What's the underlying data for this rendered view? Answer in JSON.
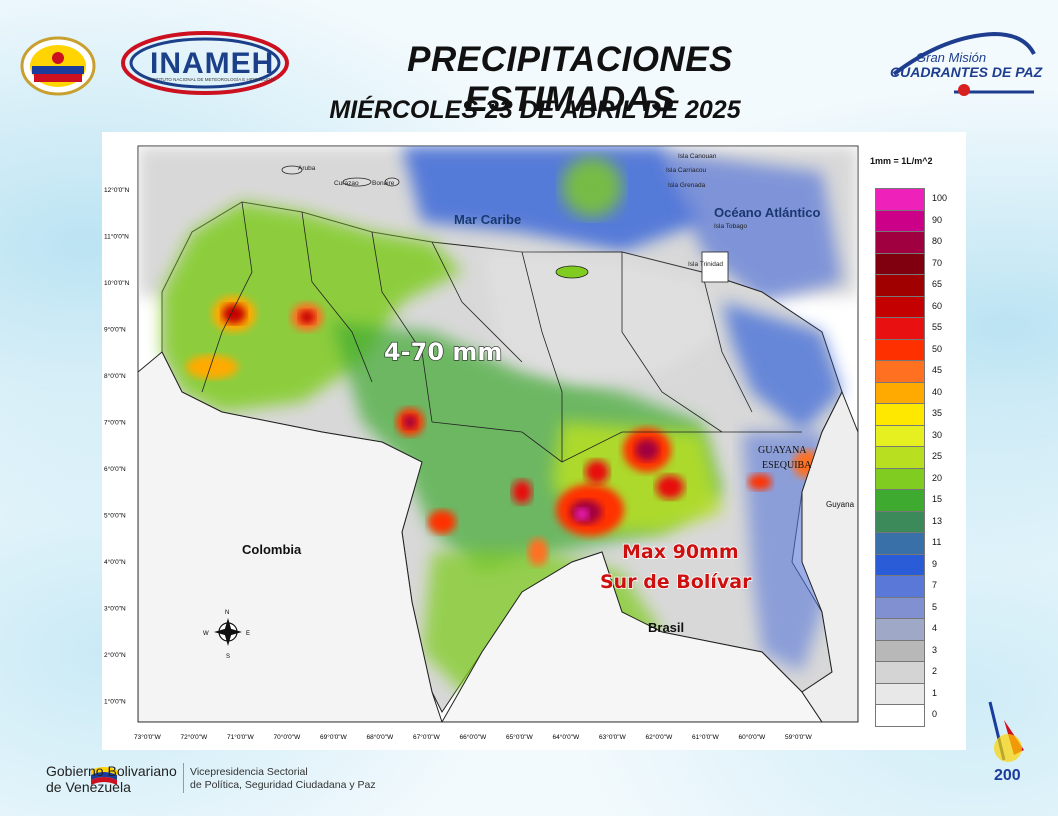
{
  "header": {
    "title": "PRECIPITACIONES ESTIMADAS",
    "date": "MIÉRCOLES  23 DE ABRIL DE 2025"
  },
  "logos": {
    "inameh": "INAMEH",
    "inameh_subtitle": "INSTITUTO NACIONAL DE METEOROLOGÍA E HIDROLOGÍA",
    "cuadrantes_line1": "Gran Misión",
    "cuadrantes_line2": "CUADRANTES DE PAZ"
  },
  "map": {
    "labels": {
      "mar_caribe": "Mar Caribe",
      "oceano": "Océano Atlántico",
      "colombia": "Colombia",
      "brasil": "Brasil",
      "guyana": "Guyana",
      "guayana_1": "GUAYANA",
      "guayana_2": "ESEQUIBA",
      "aruba": "Aruba",
      "curazao": "Curazao",
      "bonaire": "Bonaire",
      "canouan": "Isla Canouan",
      "carriacou": "Isla Carriacou",
      "grenada": "Isla Grenada",
      "tobago": "Isla Tobago",
      "trinidad": "Isla Trinidad"
    },
    "annotations": {
      "range": "4-70 mm",
      "max_line1": "Max 90mm",
      "max_line2": "Sur de Bolívar"
    },
    "lat_ticks": [
      "12°0'0\"N",
      "11°0'0\"N",
      "10°0'0\"N",
      "9°0'0\"N",
      "8°0'0\"N",
      "7°0'0\"N",
      "6°0'0\"N",
      "5°0'0\"N",
      "4°0'0\"N",
      "3°0'0\"N",
      "2°0'0\"N",
      "1°0'0\"N"
    ],
    "lon_ticks": [
      "73°0'0\"W",
      "72°0'0\"W",
      "71°0'0\"W",
      "70°0'0\"W",
      "69°0'0\"W",
      "68°0'0\"W",
      "67°0'0\"W",
      "66°0'0\"W",
      "65°0'0\"W",
      "64°0'0\"W",
      "63°0'0\"W",
      "62°0'0\"W",
      "61°0'0\"W",
      "60°0'0\"W",
      "59°0'0\"W"
    ],
    "compass": {
      "n": "N",
      "s": "S",
      "e": "E",
      "w": "W"
    }
  },
  "legend": {
    "title": "1mm = 1L/m^2",
    "items": [
      {
        "label": "100",
        "color": "#ee22bb"
      },
      {
        "label": "90",
        "color": "#cc0088"
      },
      {
        "label": "80",
        "color": "#a00040"
      },
      {
        "label": "70",
        "color": "#800010"
      },
      {
        "label": "65",
        "color": "#a00000"
      },
      {
        "label": "60",
        "color": "#c40000"
      },
      {
        "label": "55",
        "color": "#e81010"
      },
      {
        "label": "50",
        "color": "#ff3000"
      },
      {
        "label": "45",
        "color": "#ff7020"
      },
      {
        "label": "40",
        "color": "#ffaa00"
      },
      {
        "label": "35",
        "color": "#ffe800"
      },
      {
        "label": "30",
        "color": "#e6f020"
      },
      {
        "label": "25",
        "color": "#b8e020"
      },
      {
        "label": "20",
        "color": "#80cc20"
      },
      {
        "label": "15",
        "color": "#3faa30"
      },
      {
        "label": "13",
        "color": "#3c8a5a"
      },
      {
        "label": "11",
        "color": "#3a70a8"
      },
      {
        "label": "9",
        "color": "#2a5cd8"
      },
      {
        "label": "7",
        "color": "#5a78d8"
      },
      {
        "label": "5",
        "color": "#8090d0"
      },
      {
        "label": "4",
        "color": "#a0a8c8"
      },
      {
        "label": "3",
        "color": "#b8b8b8"
      },
      {
        "label": "2",
        "color": "#d4d4d4"
      },
      {
        "label": "1",
        "color": "#e8e8e8"
      },
      {
        "label": "0",
        "color": "#ffffff"
      }
    ]
  },
  "footer": {
    "gob_line1": "Gobierno Bolivariano",
    "gob_line2": "de Venezuela",
    "vice_line1": "Vicepresidencia Sectorial",
    "vice_line2": "de Política, Seguridad Ciudadana y Paz"
  }
}
